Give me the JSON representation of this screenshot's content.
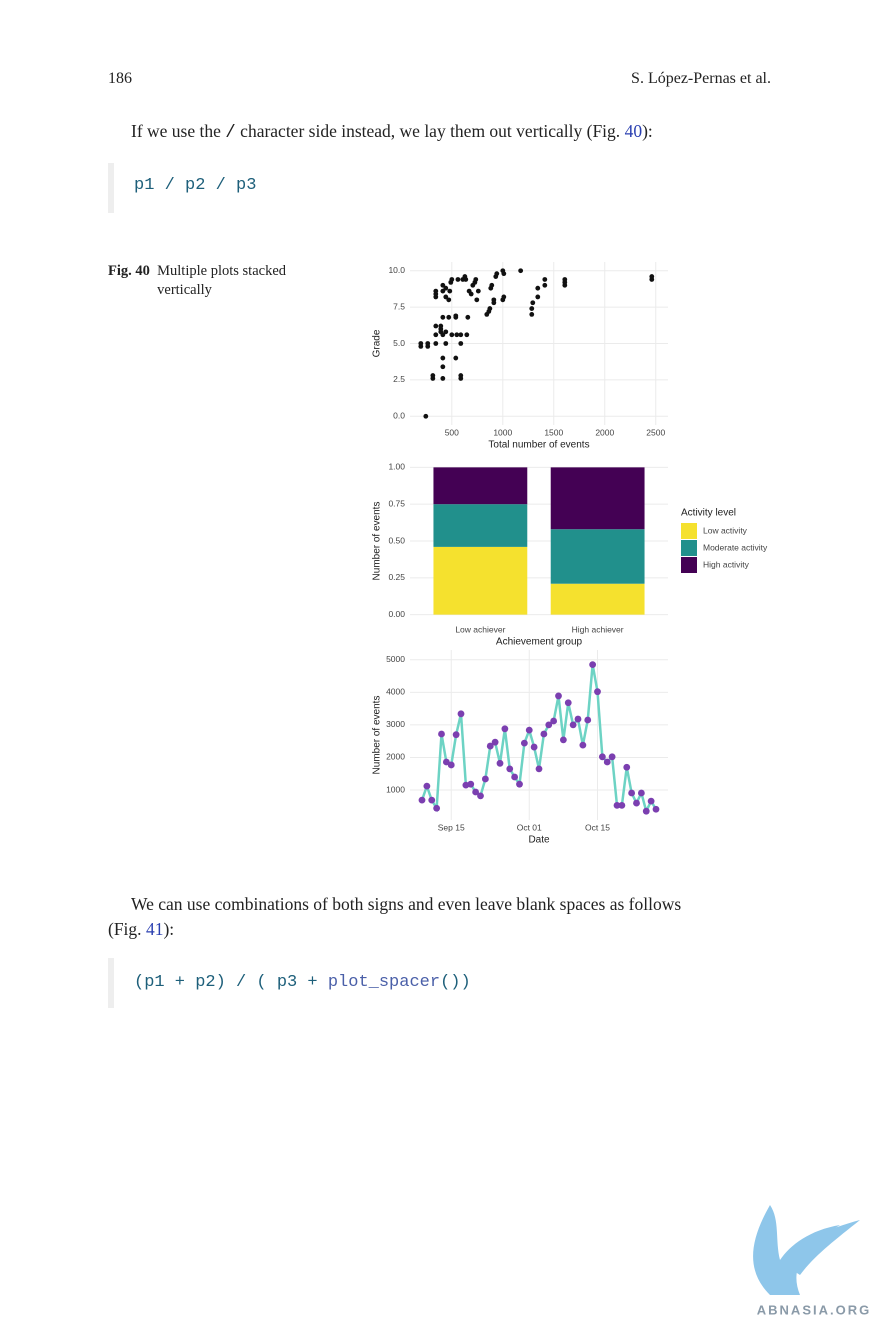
{
  "header": {
    "page_number": "186",
    "author": "S. López-Pernas et al."
  },
  "paragraph1": {
    "parts": [
      "If we use the ",
      "/",
      " character side instead, we lay them out vertically (Fig. ",
      "40",
      "):"
    ]
  },
  "code1": "p1 / p2 / p3",
  "figure": {
    "label": "Fig. 40",
    "caption": "Multiple plots stacked vertically"
  },
  "charts": [
    {
      "type": "scatter",
      "xlabel": "Total number of events",
      "ylabel": "Grade",
      "color": "#111111",
      "grid": true,
      "xlim": [
        90,
        2620
      ],
      "ylim": [
        -0.6,
        10.6
      ],
      "xticks": [
        500,
        1000,
        1500,
        2000,
        2500
      ],
      "yticks": [
        {
          "value": 0,
          "label": "0.0"
        },
        2.5,
        {
          "value": 5,
          "label": "5.0"
        },
        7.5,
        {
          "value": 10,
          "label": "10.0"
        }
      ],
      "x": [
        245,
        196,
        196,
        264,
        264,
        314,
        314,
        412,
        412,
        412,
        539,
        588,
        588,
        343,
        343,
        343,
        343,
        343,
        343,
        392,
        392,
        392,
        412,
        412,
        412,
        412,
        441,
        441,
        441,
        441,
        470,
        470,
        480,
        490,
        500,
        500,
        539,
        539,
        549,
        560,
        588,
        588,
        608,
        628,
        637,
        647,
        657,
        670,
        690,
        706,
        726,
        735,
        745,
        760,
        843,
        863,
        873,
        882,
        892,
        912,
        912,
        931,
        941,
        1000,
        1010,
        1000,
        1010,
        1175,
        1284,
        1284,
        1294,
        1343,
        1343,
        1412,
        1412,
        1608,
        1608,
        1608,
        2461,
        2461
      ],
      "y": [
        0,
        4.8,
        5.0,
        4.8,
        5.0,
        2.6,
        2.8,
        2.6,
        3.4,
        4.0,
        4.0,
        2.6,
        2.8,
        5.0,
        5.6,
        6.2,
        8.2,
        8.4,
        8.6,
        5.8,
        6.0,
        6.2,
        5.6,
        6.8,
        8.6,
        9.0,
        5.0,
        5.8,
        8.2,
        8.8,
        6.8,
        8.0,
        8.6,
        9.2,
        9.4,
        5.6,
        6.8,
        6.9,
        5.6,
        9.4,
        5.6,
        5.0,
        9.4,
        9.6,
        9.4,
        5.6,
        6.8,
        8.6,
        8.4,
        9.0,
        9.2,
        9.4,
        8.0,
        8.6,
        7.0,
        7.2,
        7.4,
        8.8,
        9.0,
        7.8,
        8.0,
        9.6,
        9.8,
        10,
        9.8,
        8.0,
        8.2,
        10.0,
        7.0,
        7.4,
        7.8,
        8.2,
        8.8,
        9.0,
        9.4,
        9.0,
        9.2,
        9.4,
        9.4,
        9.6
      ]
    },
    {
      "type": "stacked_bar",
      "xlabel": "Achievement group",
      "ylabel": "Number of events",
      "legend_title": "Activity level",
      "legend": "right",
      "grid": true,
      "categories": [
        "Low achiever",
        "High achiever"
      ],
      "ylim": [
        -0.05,
        1.05
      ],
      "yticks": [
        {
          "value": 0,
          "label": "0.00"
        },
        0.25,
        {
          "value": 0.5,
          "label": "0.50"
        },
        0.75,
        {
          "value": 1,
          "label": "1.00"
        }
      ],
      "series": [
        {
          "name": "Low activity",
          "color": "#f5e12e",
          "values": [
            0.46,
            0.21
          ]
        },
        {
          "name": "Moderate activity",
          "color": "#21908c",
          "values": [
            0.29,
            0.37
          ]
        },
        {
          "name": "High activity",
          "color": "#440154",
          "values": [
            0.25,
            0.42
          ]
        }
      ]
    },
    {
      "type": "line",
      "xlabel": "Date",
      "ylabel": "Number of events",
      "line_color": "#6dd3c4",
      "point_color": "#7b3fb0",
      "grid": true,
      "x": [
        "Sep 09",
        "Sep 10",
        "Sep 11",
        "Sep 12",
        "Sep 13",
        "Sep 14",
        "Sep 15",
        "Sep 16",
        "Sep 17",
        "Sep 18",
        "Sep 19",
        "Sep 20",
        "Sep 21",
        "Sep 22",
        "Sep 23",
        "Sep 24",
        "Sep 25",
        "Sep 26",
        "Sep 27",
        "Sep 28",
        "Sep 29",
        "Sep 30",
        "Oct 01",
        "Oct 02",
        "Oct 03",
        "Oct 04",
        "Oct 05",
        "Oct 06",
        "Oct 07",
        "Oct 08",
        "Oct 09",
        "Oct 10",
        "Oct 11",
        "Oct 12",
        "Oct 13",
        "Oct 14",
        "Oct 15",
        "Oct 16",
        "Oct 17",
        "Oct 18",
        "Oct 19",
        "Oct 20",
        "Oct 21",
        "Oct 22",
        "Oct 23",
        "Oct 24",
        "Oct 25",
        "Oct 26",
        "Oct 27"
      ],
      "xticks": [
        "Sep 15",
        "Oct 01",
        "Oct 15"
      ],
      "ylim": [
        80,
        5300
      ],
      "yticks": [
        1000,
        2000,
        3000,
        4000,
        5000
      ],
      "values": [
        690,
        1120,
        690,
        440,
        2720,
        1860,
        1770,
        2700,
        3340,
        1150,
        1180,
        940,
        820,
        1340,
        2350,
        2470,
        1820,
        2880,
        1650,
        1400,
        1180,
        2440,
        2840,
        2320,
        1650,
        2720,
        3000,
        3120,
        3890,
        2540,
        3680,
        3000,
        3180,
        2380,
        3150,
        4850,
        4020,
        2020,
        1860,
        2020,
        530,
        530,
        1700,
        910,
        600,
        910,
        350,
        660,
        410
      ]
    }
  ],
  "paragraph2": {
    "line1": "We can use combinations of both signs and even leave blank spaces as follows",
    "parts": [
      "(Fig. ",
      "41",
      "):"
    ]
  },
  "code2": {
    "parts": [
      "(p1 + p2) / ( p3 + ",
      "plot_spacer",
      "())"
    ]
  },
  "watermark": "ABNASIA.ORG"
}
